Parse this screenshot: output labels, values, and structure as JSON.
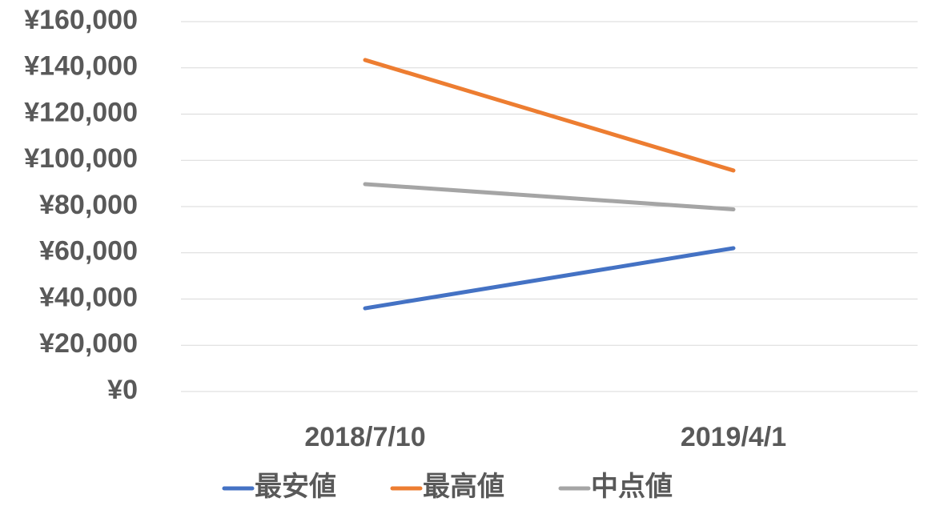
{
  "chart_data": {
    "type": "line",
    "categories": [
      "2018/7/10",
      "2019/4/1"
    ],
    "series": [
      {
        "name": "最安値",
        "color": "#4472c4",
        "values": [
          36000,
          62000
        ]
      },
      {
        "name": "最高値",
        "color": "#ed7d31",
        "values": [
          143400,
          95600
        ]
      },
      {
        "name": "中点値",
        "color": "#a5a5a5",
        "values": [
          89700,
          78800
        ]
      }
    ],
    "ylim": [
      0,
      160000
    ],
    "yticks": [
      {
        "value": 0,
        "label": "¥0"
      },
      {
        "value": 20000,
        "label": "¥20,000"
      },
      {
        "value": 40000,
        "label": "¥40,000"
      },
      {
        "value": 60000,
        "label": "¥60,000"
      },
      {
        "value": 80000,
        "label": "¥80,000"
      },
      {
        "value": 100000,
        "label": "¥100,000"
      },
      {
        "value": 120000,
        "label": "¥120,000"
      },
      {
        "value": 140000,
        "label": "¥140,000"
      },
      {
        "value": 160000,
        "label": "¥160,000"
      }
    ],
    "grid": true,
    "legend": "bottom"
  }
}
